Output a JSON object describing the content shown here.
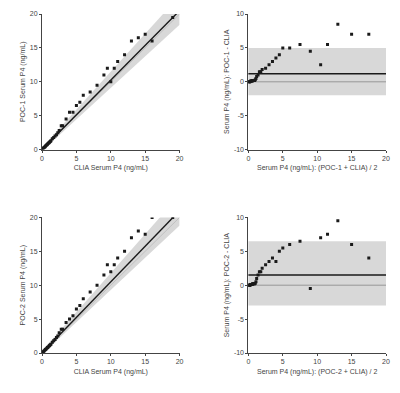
{
  "chart_data": [
    {
      "type": "scatter",
      "xlabel": "CLIA Serum P4 (ng/mL)",
      "ylabel": "POC-1 Serum P4 (ng/mL)",
      "x": [
        0.1,
        0.2,
        0.3,
        0.4,
        0.5,
        0.6,
        0.7,
        0.8,
        0.9,
        1.0,
        1.1,
        1.2,
        1.3,
        1.5,
        1.7,
        1.9,
        2.1,
        2.3,
        2.5,
        2.8,
        3.0,
        3.5,
        4.0,
        4.5,
        5.0,
        5.5,
        6.0,
        7.0,
        8.0,
        9.0,
        9.5,
        10.0,
        10.5,
        11.0,
        12.0,
        13.0,
        14.0,
        15.0,
        16.0,
        19.0
      ],
      "values": [
        0.1,
        0.2,
        0.3,
        0.4,
        0.5,
        0.6,
        0.7,
        0.8,
        0.9,
        1.0,
        1.1,
        1.2,
        1.3,
        1.6,
        1.8,
        2.0,
        2.2,
        2.5,
        2.8,
        3.5,
        3.5,
        4.5,
        5.5,
        5.5,
        6.5,
        7.0,
        8.0,
        8.5,
        9.5,
        11.0,
        12.0,
        10.0,
        12.0,
        13.0,
        14.0,
        16.0,
        16.5,
        17.0,
        16.0,
        19.5
      ],
      "color": "#1a1a1a",
      "marker": "square",
      "regression": {
        "slope": 1.025,
        "intercept": 0.0,
        "color": "#1a1a1a"
      },
      "ci_band": {
        "upper": {
          "slope": 1.12,
          "intercept": 0.3
        },
        "lower": {
          "slope": 0.93,
          "intercept": -0.2
        },
        "color": "#d8d8d8"
      },
      "identity": {
        "slope": 1,
        "intercept": 0,
        "color": "#c0c0c0"
      },
      "xlim": [
        0,
        20
      ],
      "ylim": [
        0,
        20
      ],
      "xticks": [
        0,
        5,
        10,
        15,
        20
      ],
      "yticks": [
        0,
        5,
        10,
        15,
        20
      ],
      "grid": false
    },
    {
      "type": "scatter",
      "xlabel": "Serum P4 (ng/mL): (POC-1 + CLIA) / 2",
      "ylabel": "Serum P4 (ng/mL): POC-1 - CLIA",
      "x": [
        0.05,
        0.1,
        0.15,
        0.2,
        0.25,
        0.3,
        0.35,
        0.4,
        0.5,
        0.55,
        0.6,
        0.7,
        0.8,
        0.9,
        1.0,
        1.1,
        1.2,
        1.4,
        1.6,
        1.8,
        2.0,
        2.5,
        3.0,
        3.5,
        4.0,
        4.5,
        5.0,
        6.0,
        7.5,
        9.0,
        10.5,
        11.5,
        13.0,
        15.0,
        17.5
      ],
      "values": [
        0.0,
        0.0,
        0.0,
        0.0,
        0.05,
        0.05,
        0.1,
        0.1,
        0.1,
        0.1,
        0.2,
        0.2,
        0.2,
        0.2,
        0.3,
        0.5,
        0.8,
        1.0,
        1.5,
        1.5,
        1.8,
        2.0,
        2.5,
        3.0,
        3.5,
        4.0,
        5.0,
        5.0,
        5.5,
        4.5,
        2.5,
        5.5,
        8.5,
        7.0,
        7.0
      ],
      "color": "#1a1a1a",
      "marker": "square",
      "bias": {
        "value": 1.2,
        "color": "#1a1a1a"
      },
      "loa_band": {
        "upper": 5.0,
        "lower": -2.0,
        "color": "#d8d8d8"
      },
      "zero_line": {
        "value": 0,
        "color": "#888888"
      },
      "xlim": [
        0,
        20
      ],
      "ylim": [
        -10,
        10
      ],
      "xticks": [
        0,
        5,
        10,
        15,
        20
      ],
      "yticks": [
        -10,
        -5,
        0,
        5,
        10
      ],
      "grid": false
    },
    {
      "type": "scatter",
      "xlabel": "CLIA Serum P4 (ng/mL)",
      "ylabel": "POC-2 Serum P4 (ng/mL)",
      "x": [
        0.1,
        0.2,
        0.3,
        0.4,
        0.5,
        0.6,
        0.7,
        0.8,
        0.9,
        1.0,
        1.1,
        1.2,
        1.3,
        1.5,
        1.7,
        1.9,
        2.1,
        2.3,
        2.5,
        2.8,
        3.0,
        3.5,
        4.0,
        4.5,
        5.0,
        5.5,
        6.0,
        7.0,
        8.0,
        9.0,
        9.5,
        10.0,
        10.5,
        11.0,
        12.0,
        13.0,
        14.0,
        15.0,
        16.0,
        19.0
      ],
      "values": [
        0.1,
        0.2,
        0.3,
        0.4,
        0.5,
        0.6,
        0.7,
        0.8,
        0.9,
        1.0,
        1.1,
        1.2,
        1.3,
        1.6,
        1.8,
        2.0,
        2.3,
        2.5,
        3.0,
        3.5,
        3.5,
        4.5,
        5.0,
        5.5,
        6.5,
        7.0,
        8.0,
        9.0,
        10.0,
        11.5,
        13.0,
        12.0,
        13.0,
        14.0,
        15.0,
        17.0,
        18.0,
        17.5,
        20.0,
        20.0
      ],
      "color": "#1a1a1a",
      "marker": "square",
      "regression": {
        "slope": 1.05,
        "intercept": 0.0,
        "color": "#1a1a1a"
      },
      "ci_band": {
        "upper": {
          "slope": 1.15,
          "intercept": 0.3
        },
        "lower": {
          "slope": 0.95,
          "intercept": -0.2
        },
        "color": "#d8d8d8"
      },
      "identity": {
        "slope": 1,
        "intercept": 0,
        "color": "#c0c0c0"
      },
      "xlim": [
        0,
        20
      ],
      "ylim": [
        0,
        20
      ],
      "xticks": [
        0,
        5,
        10,
        15,
        20
      ],
      "yticks": [
        0,
        5,
        10,
        15,
        20
      ],
      "grid": false
    },
    {
      "type": "scatter",
      "xlabel": "Serum P4 (ng/mL): (POC-2 + CLIA) / 2",
      "ylabel": "Serum P4 (ng/mL): POC-2 - CLIA",
      "x": [
        0.05,
        0.1,
        0.15,
        0.2,
        0.25,
        0.3,
        0.35,
        0.4,
        0.5,
        0.55,
        0.6,
        0.7,
        0.8,
        0.9,
        1.0,
        1.1,
        1.2,
        1.4,
        1.6,
        1.8,
        2.0,
        2.5,
        3.0,
        3.5,
        4.0,
        4.5,
        5.0,
        6.0,
        7.5,
        9.0,
        10.5,
        11.5,
        13.0,
        15.0,
        17.5
      ],
      "values": [
        0.0,
        0.0,
        0.0,
        0.0,
        0.05,
        0.05,
        0.1,
        0.1,
        0.1,
        0.1,
        0.2,
        0.2,
        0.2,
        0.2,
        0.3,
        0.5,
        1.0,
        1.5,
        2.0,
        2.0,
        2.5,
        3.0,
        3.5,
        4.0,
        3.5,
        5.0,
        5.5,
        6.0,
        6.5,
        -0.5,
        7.0,
        7.5,
        9.5,
        6.0,
        4.0
      ],
      "color": "#1a1a1a",
      "marker": "square",
      "bias": {
        "value": 1.5,
        "color": "#1a1a1a"
      },
      "loa_band": {
        "upper": 6.5,
        "lower": -3.0,
        "color": "#d8d8d8"
      },
      "zero_line": {
        "value": 0,
        "color": "#888888"
      },
      "xlim": [
        0,
        20
      ],
      "ylim": [
        -10,
        10
      ],
      "xticks": [
        0,
        5,
        10,
        15,
        20
      ],
      "yticks": [
        -10,
        -5,
        0,
        5,
        10
      ],
      "grid": false
    }
  ]
}
